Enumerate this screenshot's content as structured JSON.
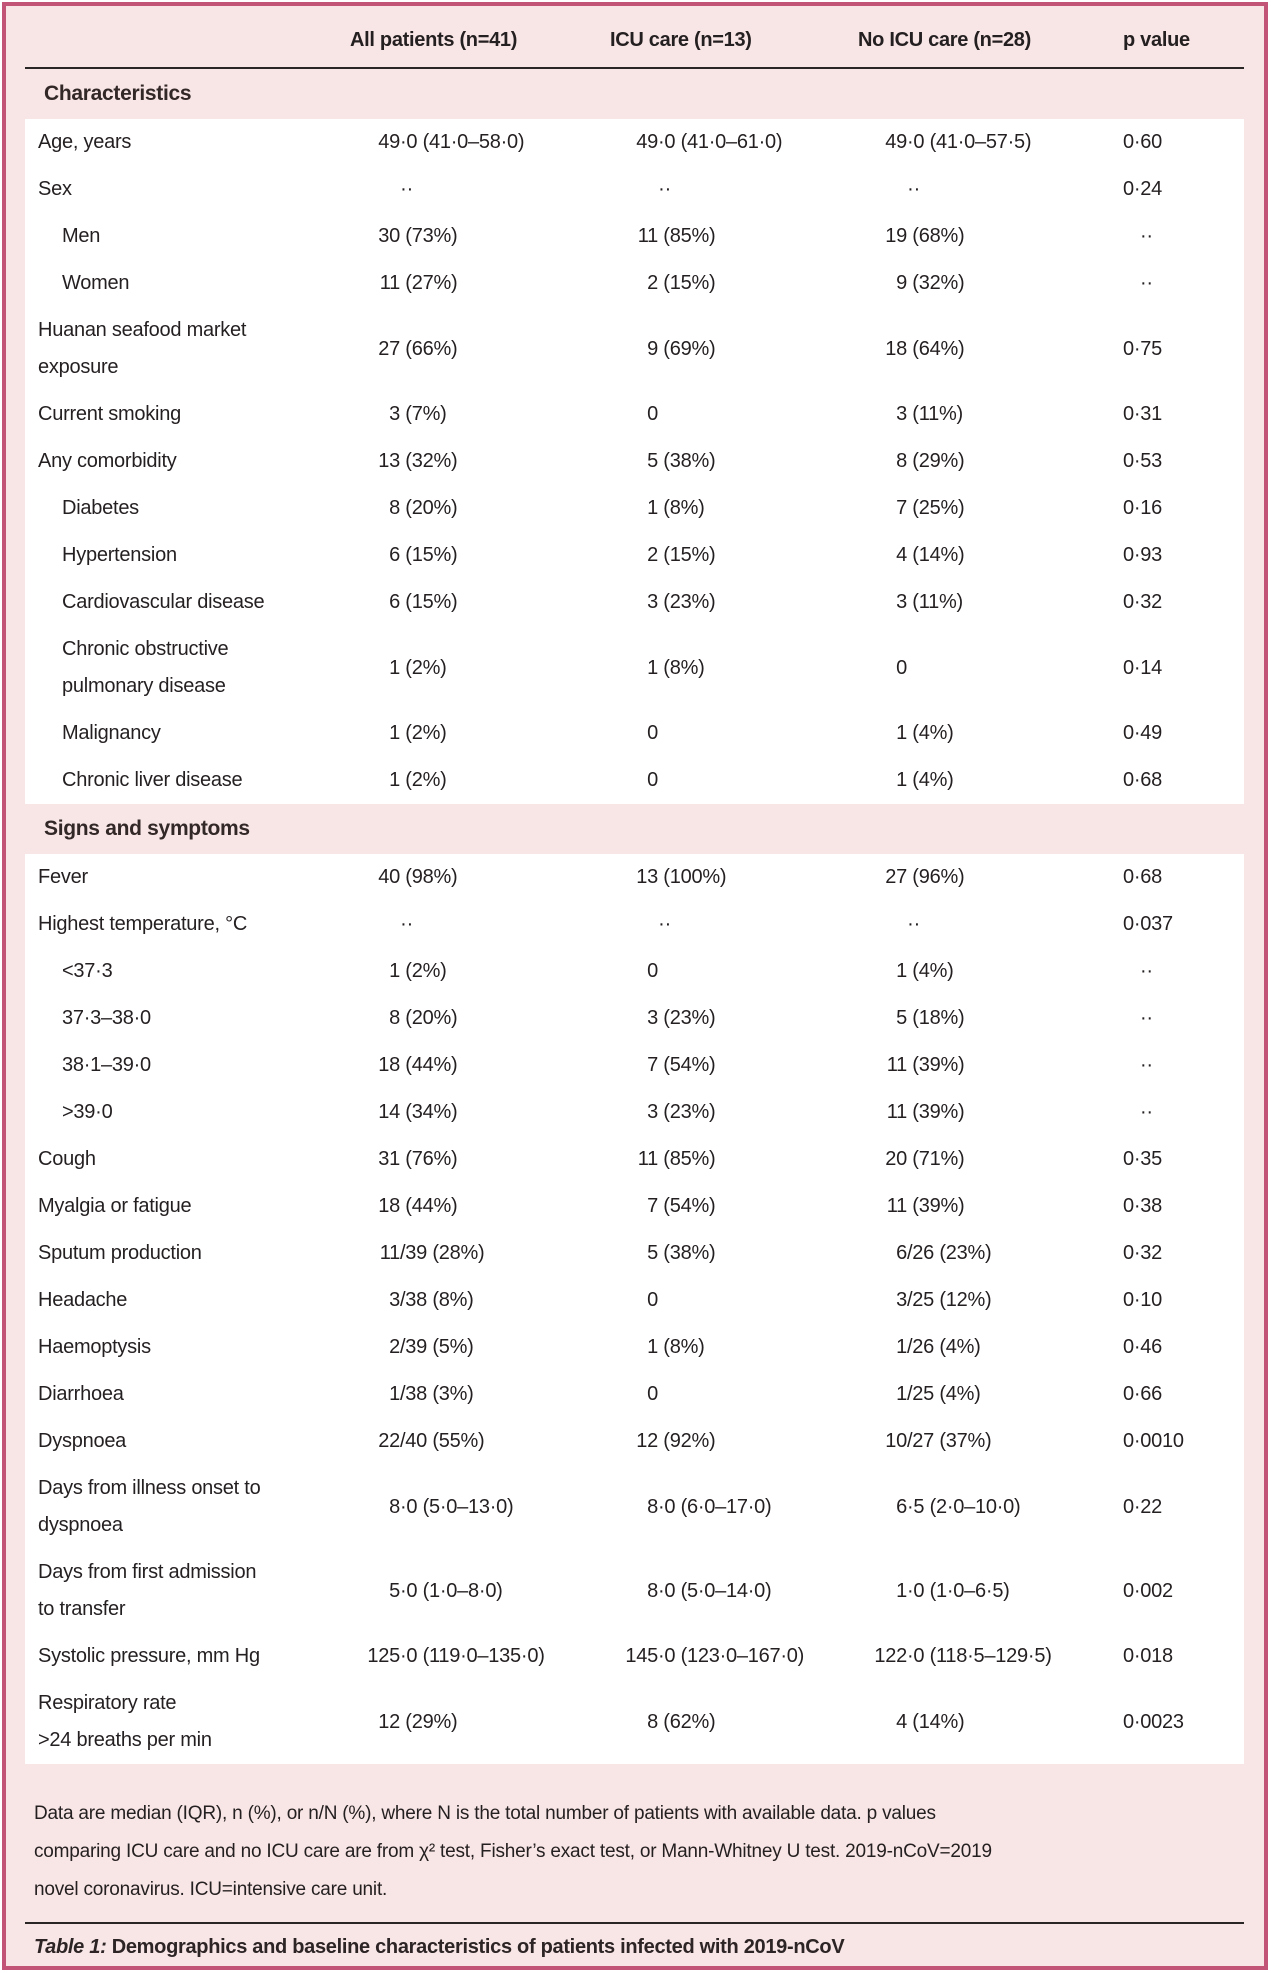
{
  "colors": {
    "frame_border": "#c25577",
    "background_pink": "#f8e5e5",
    "row_background": "#ffffff",
    "rule_dark": "#2b2626",
    "text": "#241f20"
  },
  "table": {
    "columns": [
      "",
      "All patients (n=41)",
      "ICU care (n=13)",
      "No ICU care (n=28)",
      "p value"
    ],
    "sections": [
      {
        "title": "Characteristics",
        "rows": [
          {
            "label": "Age, years",
            "indent": false,
            "values": [
              "49·0 (41·0–58·0)",
              "49·0 (41·0–61·0)",
              "49·0 (41·0–57·5)",
              "0·60"
            ]
          },
          {
            "label": "Sex",
            "indent": false,
            "values": [
              "··",
              "··",
              "··",
              "0·24"
            ]
          },
          {
            "label": "Men",
            "indent": true,
            "values": [
              "30 (73%)",
              "11 (85%)",
              "19 (68%)",
              "··"
            ]
          },
          {
            "label": "Women",
            "indent": true,
            "values": [
              "11 (27%)",
              "2 (15%)",
              "9 (32%)",
              "··"
            ]
          },
          {
            "label": "Huanan seafood market\nexposure",
            "indent": false,
            "values": [
              "27 (66%)",
              "9 (69%)",
              "18 (64%)",
              "0·75"
            ]
          },
          {
            "label": "Current smoking",
            "indent": false,
            "values": [
              "3 (7%)",
              "0",
              "3 (11%)",
              "0·31"
            ]
          },
          {
            "label": "Any comorbidity",
            "indent": false,
            "values": [
              "13 (32%)",
              "5 (38%)",
              "8 (29%)",
              "0·53"
            ]
          },
          {
            "label": "Diabetes",
            "indent": true,
            "values": [
              "8 (20%)",
              "1 (8%)",
              "7 (25%)",
              "0·16"
            ]
          },
          {
            "label": "Hypertension",
            "indent": true,
            "values": [
              "6 (15%)",
              "2 (15%)",
              "4 (14%)",
              "0·93"
            ]
          },
          {
            "label": "Cardiovascular disease",
            "indent": true,
            "values": [
              "6 (15%)",
              "3 (23%)",
              "3 (11%)",
              "0·32"
            ]
          },
          {
            "label": "Chronic obstructive\npulmonary disease",
            "indent": true,
            "values": [
              "1 (2%)",
              "1 (8%)",
              "0",
              "0·14"
            ]
          },
          {
            "label": "Malignancy",
            "indent": true,
            "values": [
              "1 (2%)",
              "0",
              "1 (4%)",
              "0·49"
            ]
          },
          {
            "label": "Chronic liver disease",
            "indent": true,
            "values": [
              "1 (2%)",
              "0",
              "1 (4%)",
              "0·68"
            ]
          }
        ]
      },
      {
        "title": "Signs and symptoms",
        "rows": [
          {
            "label": "Fever",
            "indent": false,
            "values": [
              "40 (98%)",
              "13 (100%)",
              "27 (96%)",
              "0·68"
            ]
          },
          {
            "label": "Highest temperature, °C",
            "indent": false,
            "values": [
              "··",
              "··",
              "··",
              "0·037"
            ]
          },
          {
            "label": "<37·3",
            "indent": true,
            "values": [
              "1 (2%)",
              "0",
              "1 (4%)",
              "··"
            ]
          },
          {
            "label": "37·3–38·0",
            "indent": true,
            "values": [
              "8 (20%)",
              "3 (23%)",
              "5 (18%)",
              "··"
            ]
          },
          {
            "label": "38·1–39·0",
            "indent": true,
            "values": [
              "18 (44%)",
              "7 (54%)",
              "11 (39%)",
              "··"
            ]
          },
          {
            "label": ">39·0",
            "indent": true,
            "values": [
              "14 (34%)",
              "3 (23%)",
              "11 (39%)",
              "··"
            ]
          },
          {
            "label": "Cough",
            "indent": false,
            "values": [
              "31 (76%)",
              "11 (85%)",
              "20 (71%)",
              "0·35"
            ]
          },
          {
            "label": "Myalgia or fatigue",
            "indent": false,
            "values": [
              "18 (44%)",
              "7 (54%)",
              "11 (39%)",
              "0·38"
            ]
          },
          {
            "label": "Sputum production",
            "indent": false,
            "values": [
              "11/39 (28%)",
              "5 (38%)",
              "6/26 (23%)",
              "0·32"
            ]
          },
          {
            "label": "Headache",
            "indent": false,
            "values": [
              "3/38 (8%)",
              "0",
              "3/25 (12%)",
              "0·10"
            ]
          },
          {
            "label": "Haemoptysis",
            "indent": false,
            "values": [
              "2/39 (5%)",
              "1 (8%)",
              "1/26 (4%)",
              "0·46"
            ]
          },
          {
            "label": "Diarrhoea",
            "indent": false,
            "values": [
              "1/38 (3%)",
              "0",
              "1/25 (4%)",
              "0·66"
            ]
          },
          {
            "label": "Dyspnoea",
            "indent": false,
            "values": [
              "22/40 (55%)",
              "12 (92%)",
              "10/27 (37%)",
              "0·0010"
            ]
          },
          {
            "label": "Days from illness onset to\ndyspnoea",
            "indent": false,
            "values": [
              "8·0 (5·0–13·0)",
              "8·0 (6·0–17·0)",
              "6·5 (2·0–10·0)",
              "0·22"
            ]
          },
          {
            "label": "Days from first admission\nto transfer",
            "indent": false,
            "values": [
              "5·0 (1·0–8·0)",
              "8·0 (5·0–14·0)",
              "1·0 (1·0–6·5)",
              "0·002"
            ]
          },
          {
            "label": "Systolic pressure, mm Hg",
            "indent": false,
            "values": [
              "125·0 (119·0–135·0)",
              "145·0 (123·0–167·0)",
              "122·0 (118·5–129·5)",
              "0·018"
            ]
          },
          {
            "label": "Respiratory rate\n>24 breaths per min",
            "indent": false,
            "values": [
              "12 (29%)",
              "8 (62%)",
              "4 (14%)",
              "0·0023"
            ]
          }
        ]
      }
    ],
    "footnote": "Data are median (IQR), n (%), or n/N (%), where N is the total number of patients with available data. p values\ncomparing ICU care and no ICU care are from χ² test, Fisher’s exact test, or Mann-Whitney U test. 2019-nCoV=2019\nnovel coronavirus. ICU=intensive care unit.",
    "caption_label": "Table 1:",
    "caption_text": "Demographics and baseline characteristics of patients infected with 2019-nCoV"
  }
}
